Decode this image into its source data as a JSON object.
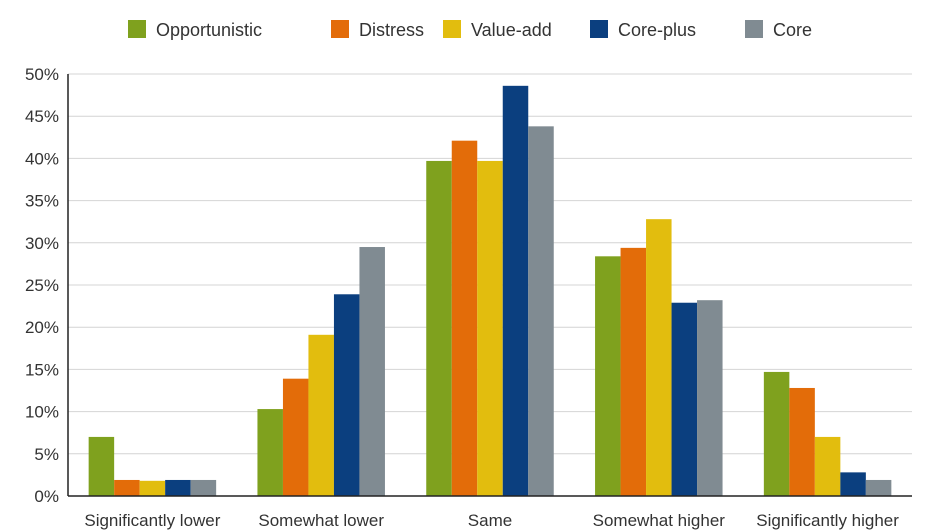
{
  "chart_data": {
    "type": "bar",
    "categories": [
      "Significantly lower",
      "Somewhat lower",
      "Same",
      "Somewhat higher",
      "Significantly higher"
    ],
    "series": [
      {
        "name": "Opportunistic",
        "color": "#7fa11e",
        "values": [
          7.0,
          10.3,
          39.7,
          28.4,
          14.7
        ]
      },
      {
        "name": "Distress",
        "color": "#e36c09",
        "values": [
          1.9,
          13.9,
          42.1,
          29.4,
          12.8
        ]
      },
      {
        "name": "Value-add",
        "color": "#e2bd0e",
        "values": [
          1.8,
          19.1,
          39.7,
          32.8,
          7.0
        ]
      },
      {
        "name": "Core-plus",
        "color": "#0b3f7f",
        "values": [
          1.9,
          23.9,
          48.6,
          22.9,
          2.8
        ]
      },
      {
        "name": "Core",
        "color": "#808b92",
        "values": [
          1.9,
          29.5,
          43.8,
          23.2,
          1.9
        ]
      }
    ],
    "ylim": [
      0,
      50
    ],
    "yticks": [
      0,
      5,
      10,
      15,
      20,
      25,
      30,
      35,
      40,
      45,
      50
    ],
    "ytick_suffix": "%",
    "grid": true,
    "legend_position": "top-center",
    "title": "",
    "xlabel": "",
    "ylabel": ""
  }
}
